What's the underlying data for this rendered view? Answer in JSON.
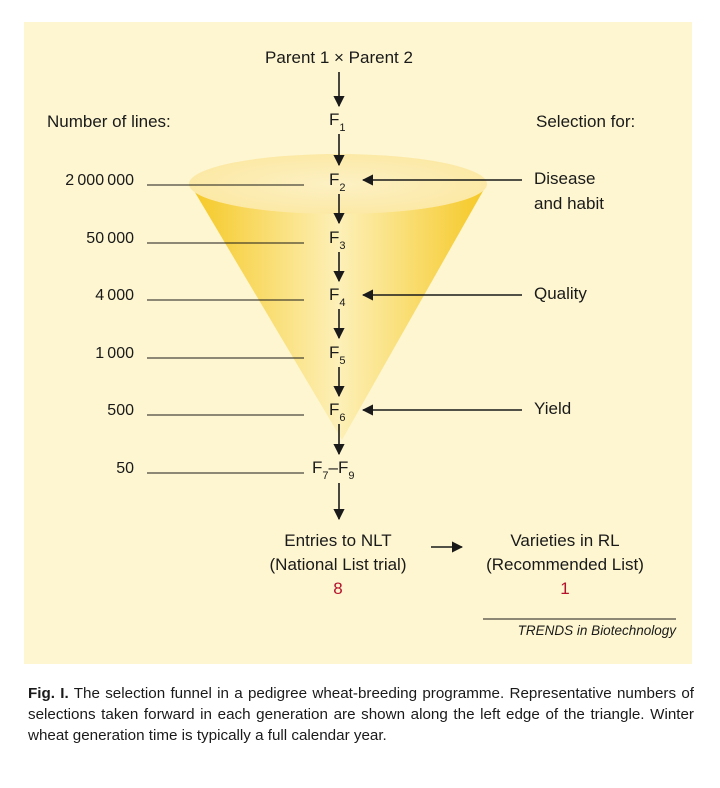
{
  "parents": "Parent 1 × Parent 2",
  "left_header": "Number of lines:",
  "right_header": "Selection for:",
  "generations": [
    {
      "label": "F",
      "sub": "1",
      "lines": ""
    },
    {
      "label": "F",
      "sub": "2",
      "lines": "2 000 000"
    },
    {
      "label": "F",
      "sub": "3",
      "lines": "50 000"
    },
    {
      "label": "F",
      "sub": "4",
      "lines": "4 000"
    },
    {
      "label": "F",
      "sub": "5",
      "lines": "1 000"
    },
    {
      "label": "F",
      "sub": "6",
      "lines": "500"
    },
    {
      "label": "F",
      "sub": "7",
      "lines": "50",
      "suffix": "–F",
      "sub2": "9"
    }
  ],
  "selections": [
    {
      "generation": "F2",
      "line1": "Disease",
      "line2": "and habit"
    },
    {
      "generation": "F4",
      "line1": "Quality",
      "line2": ""
    },
    {
      "generation": "F6",
      "line1": "Yield",
      "line2": ""
    }
  ],
  "outcome_left": {
    "line1": "Entries to NLT",
    "line2": "(National List trial)",
    "value": "8"
  },
  "outcome_right": {
    "line1": "Varieties in RL",
    "line2": "(Recommended List)",
    "value": "1"
  },
  "brand": "TRENDS in Biotechnology",
  "caption": {
    "label": "Fig. I.",
    "text": " The selection funnel in a pedigree wheat-breeding programme. Representative numbers of selections taken forward in each generation are shown along the left edge of the triangle. Winter wheat generation time is typically a full calendar year."
  },
  "colors": {
    "panel": "#fdf6d0",
    "funnel_edge": "#f5cc2e",
    "funnel_center": "#fdf0b8",
    "highlight": "#b5122d"
  }
}
